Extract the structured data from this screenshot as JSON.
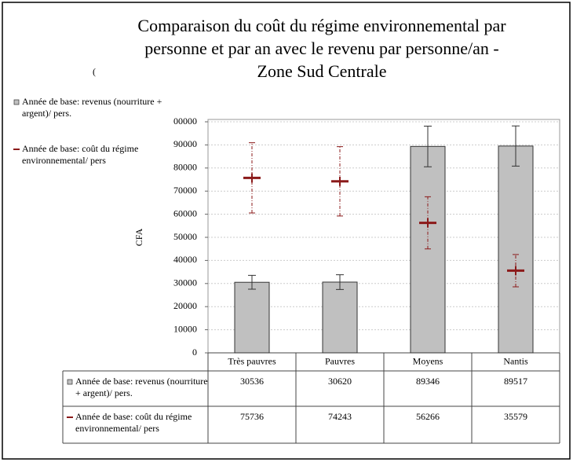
{
  "chart_data": {
    "type": "bar_error",
    "title": "Comparaison du coût du régime environnemental par personne et par an avec le revenu par personne/an  - Zone Sud Centrale",
    "annotation": "(",
    "ylabel": "CFA",
    "categories": [
      "Très pauvres",
      "Pauvres",
      "Moyens",
      "Nantis"
    ],
    "series": [
      {
        "name": "Année de base: revenus (nourriture + argent)/ pers.",
        "type": "bar",
        "color": "#c0c0c0",
        "values": [
          30536,
          30620,
          89346,
          89517
        ],
        "errors": [
          3000,
          3200,
          8800,
          8700
        ]
      },
      {
        "name": "Année de base: coût du régime environnemental/ pers",
        "type": "marker",
        "color": "#8b1a1a",
        "values": [
          75736,
          74243,
          56266,
          35579
        ],
        "errors": [
          15200,
          15000,
          11300,
          7000
        ]
      }
    ],
    "ylim": [
      0,
      100000
    ],
    "yticks": [
      0,
      10000,
      20000,
      30000,
      40000,
      50000,
      60000,
      70000,
      80000,
      90000,
      {
        "value": 100000,
        "label": "00000"
      }
    ],
    "grid": true
  }
}
